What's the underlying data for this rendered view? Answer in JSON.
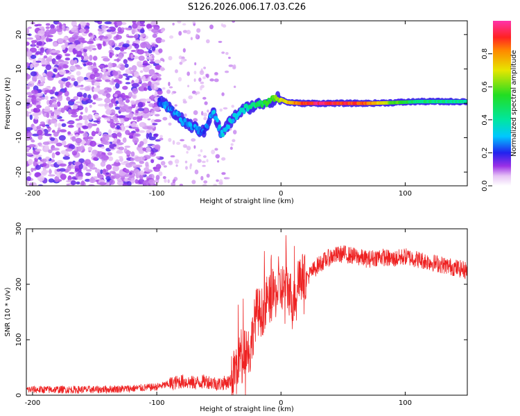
{
  "title": "S126.2026.006.17.03.C26",
  "colors": {
    "snr_line": "#ee2222",
    "frame": "#000000"
  },
  "chart_data": [
    {
      "type": "heatmap",
      "xlabel": "Height of straight line (km)",
      "ylabel": "Frequency (Hz)",
      "xlim": [
        -205,
        150
      ],
      "ylim": [
        -24,
        24
      ],
      "x_ticks": [
        -200,
        -100,
        0,
        100
      ],
      "x_tick_labels": [
        "-200",
        "-100",
        "0",
        "100"
      ],
      "y_ticks": [
        -20,
        -10,
        0,
        10,
        20
      ],
      "y_tick_labels": [
        "-20",
        "-10",
        "0",
        "10",
        "20"
      ],
      "colorbar": {
        "label": "Normalized spectral amplitude",
        "range": [
          0,
          1
        ],
        "ticks": [
          0.0,
          0.2,
          0.4,
          0.6,
          0.8
        ],
        "tick_labels": [
          "0.0",
          "0.2",
          "0.4",
          "0.6",
          "0.8"
        ]
      },
      "noise_region": {
        "x_start": -205,
        "x_end": -97,
        "amplitude": [
          0.05,
          0.18
        ]
      },
      "ridge": [
        {
          "x": -98,
          "f": 0.5,
          "amp": 0.22
        },
        {
          "x": -92,
          "f": -1.0,
          "amp": 0.25
        },
        {
          "x": -85,
          "f": -3.0,
          "amp": 0.28
        },
        {
          "x": -78,
          "f": -5.5,
          "amp": 0.26
        },
        {
          "x": -70,
          "f": -7.0,
          "amp": 0.25
        },
        {
          "x": -62,
          "f": -8.5,
          "amp": 0.22
        },
        {
          "x": -55,
          "f": -2.0,
          "amp": 0.28
        },
        {
          "x": -48,
          "f": -9.0,
          "amp": 0.3
        },
        {
          "x": -42,
          "f": -6.0,
          "amp": 0.32
        },
        {
          "x": -35,
          "f": -3.0,
          "amp": 0.34
        },
        {
          "x": -28,
          "f": -1.5,
          "amp": 0.38
        },
        {
          "x": -20,
          "f": -0.5,
          "amp": 0.45
        },
        {
          "x": -10,
          "f": 0.5,
          "amp": 0.55
        },
        {
          "x": -2,
          "f": 1.5,
          "amp": 0.62
        },
        {
          "x": 5,
          "f": 0.3,
          "amp": 0.75
        },
        {
          "x": 15,
          "f": 0.0,
          "amp": 0.85
        },
        {
          "x": 30,
          "f": 0.0,
          "amp": 0.95
        },
        {
          "x": 50,
          "f": 0.0,
          "amp": 0.9
        },
        {
          "x": 70,
          "f": 0.0,
          "amp": 0.85
        },
        {
          "x": 90,
          "f": 0.2,
          "amp": 0.6
        },
        {
          "x": 110,
          "f": 0.5,
          "amp": 0.45
        },
        {
          "x": 130,
          "f": 0.5,
          "amp": 0.42
        },
        {
          "x": 150,
          "f": 0.5,
          "amp": 0.4
        }
      ]
    },
    {
      "type": "line",
      "xlabel": "Height of straight line (km)",
      "ylabel": "SNR (10 * v/v)",
      "xlim": [
        -205,
        150
      ],
      "ylim": [
        0,
        300
      ],
      "x_ticks": [
        -200,
        -100,
        0,
        100
      ],
      "x_tick_labels": [
        "-200",
        "-100",
        "0",
        "100"
      ],
      "y_ticks": [
        0,
        100,
        200,
        300
      ],
      "y_tick_labels": [
        "0",
        "100",
        "200",
        "300"
      ],
      "series": [
        {
          "name": "SNR",
          "x": [
            -205,
            -180,
            -150,
            -120,
            -100,
            -90,
            -80,
            -70,
            -60,
            -50,
            -40,
            -35,
            -30,
            -25,
            -20,
            -15,
            -10,
            -5,
            0,
            5,
            10,
            15,
            20,
            30,
            40,
            50,
            60,
            70,
            80,
            90,
            100,
            110,
            120,
            130,
            140,
            150
          ],
          "values": [
            10,
            10,
            10,
            12,
            15,
            20,
            25,
            22,
            25,
            20,
            25,
            60,
            90,
            80,
            150,
            150,
            170,
            180,
            195,
            195,
            170,
            215,
            210,
            235,
            250,
            255,
            250,
            245,
            250,
            245,
            250,
            245,
            240,
            235,
            230,
            225
          ]
        }
      ]
    }
  ]
}
